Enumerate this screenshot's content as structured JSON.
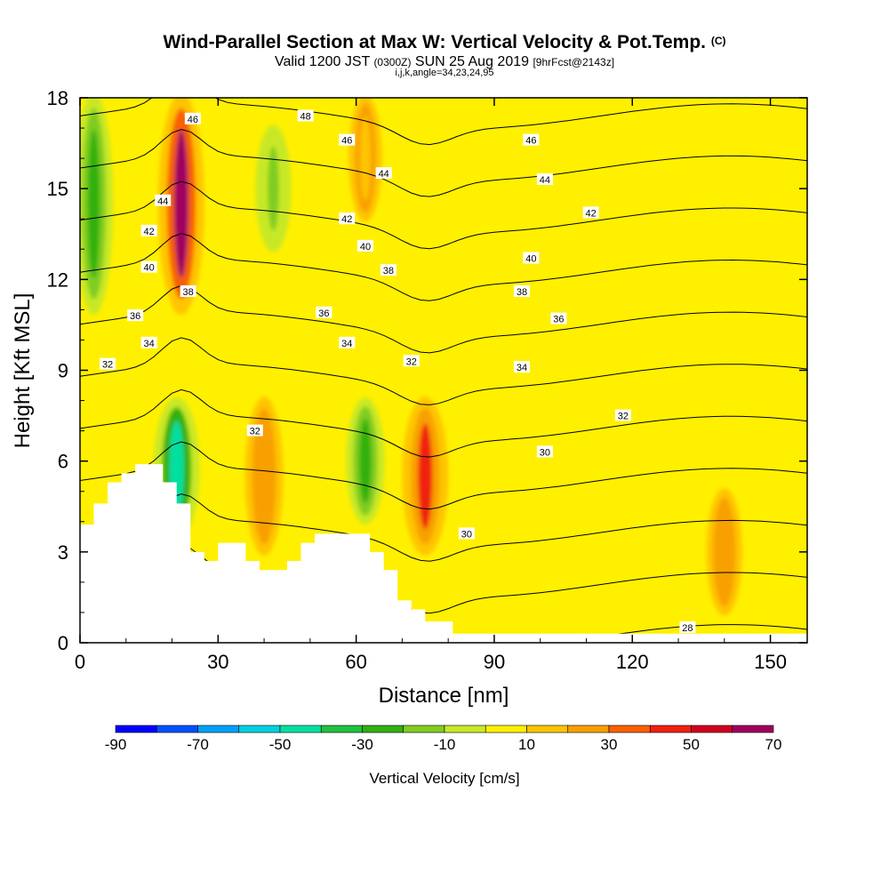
{
  "title": {
    "main": "Wind-Parallel Section at Max W: Vertical Velocity & Pot.Temp.",
    "copyright": "(C)",
    "valid_prefix": "Valid 1200 JST",
    "valid_utc": "(0300Z)",
    "valid_date": "SUN 25 Aug 2019",
    "forecast": "[9hrFcst@2143z]",
    "indices": "i,j,k,angle=34,23,24,95"
  },
  "chart_data": {
    "type": "heatmap",
    "xlabel": "Distance [nm]",
    "ylabel": "Height [Kft MSL]",
    "xlim": [
      0,
      158
    ],
    "ylim": [
      0,
      18
    ],
    "xticks": [
      0,
      30,
      60,
      90,
      120,
      150
    ],
    "xtick_labels": [
      "0",
      "30",
      "60",
      "90",
      "120",
      "150"
    ],
    "yticks": [
      0,
      3,
      6,
      9,
      12,
      15,
      18
    ],
    "ytick_labels": [
      "0",
      "3",
      "6",
      "9",
      "12",
      "15",
      "18"
    ],
    "colorbar": {
      "label": "Vertical Velocity [cm/s]",
      "tick_values": [
        -90,
        -70,
        -50,
        -30,
        -10,
        10,
        30,
        50,
        70
      ],
      "tick_labels": [
        "-90",
        "-70",
        "-50",
        "-30",
        "-10",
        "10",
        "30",
        "50",
        "70"
      ],
      "bins": [
        {
          "from": -90,
          "to": -80,
          "color": "#0000ff"
        },
        {
          "from": -80,
          "to": -70,
          "color": "#0050ff"
        },
        {
          "from": -70,
          "to": -60,
          "color": "#00a0f8"
        },
        {
          "from": -60,
          "to": -50,
          "color": "#00d0e0"
        },
        {
          "from": -50,
          "to": -40,
          "color": "#00e0a0"
        },
        {
          "from": -40,
          "to": -30,
          "color": "#20c040"
        },
        {
          "from": -30,
          "to": -20,
          "color": "#30b010"
        },
        {
          "from": -20,
          "to": -10,
          "color": "#80cc20"
        },
        {
          "from": -10,
          "to": 0,
          "color": "#c8e828"
        },
        {
          "from": 0,
          "to": 10,
          "color": "#fff000"
        },
        {
          "from": 10,
          "to": 20,
          "color": "#ffc400"
        },
        {
          "from": 20,
          "to": 30,
          "color": "#f8a000"
        },
        {
          "from": 30,
          "to": 40,
          "color": "#f86000"
        },
        {
          "from": 40,
          "to": 50,
          "color": "#f02010"
        },
        {
          "from": 50,
          "to": 60,
          "color": "#d00020"
        },
        {
          "from": 60,
          "to": 70,
          "color": "#a00060"
        }
      ]
    },
    "velocity_features": [
      {
        "x": 22,
        "y0": 11,
        "y1": 18,
        "value": 65,
        "desc": "strong updraft"
      },
      {
        "x": 75,
        "y0": 3,
        "y1": 8,
        "value": 45
      },
      {
        "x": 21,
        "y0": 3.5,
        "y1": 8,
        "value": -50
      },
      {
        "x": 40,
        "y0": 3,
        "y1": 8,
        "value": 25
      },
      {
        "x": 62,
        "y0": 4,
        "y1": 8,
        "value": -25
      },
      {
        "x": 3,
        "y0": 11,
        "y1": 18,
        "value": -25
      },
      {
        "x": 42,
        "y0": 13,
        "y1": 17,
        "value": -20
      },
      {
        "x": 62,
        "y0": 14,
        "y1": 18,
        "value": 15
      },
      {
        "x": 140,
        "y0": 1,
        "y1": 5,
        "value": 20
      }
    ],
    "terrain": [
      {
        "x": 0,
        "h": 3.9
      },
      {
        "x": 3,
        "h": 4.6
      },
      {
        "x": 6,
        "h": 5.3
      },
      {
        "x": 9,
        "h": 5.6
      },
      {
        "x": 12,
        "h": 5.9
      },
      {
        "x": 18,
        "h": 5.3
      },
      {
        "x": 21,
        "h": 4.6
      },
      {
        "x": 24,
        "h": 3.0
      },
      {
        "x": 27,
        "h": 2.7
      },
      {
        "x": 30,
        "h": 3.3
      },
      {
        "x": 36,
        "h": 2.7
      },
      {
        "x": 39,
        "h": 2.4
      },
      {
        "x": 45,
        "h": 2.7
      },
      {
        "x": 48,
        "h": 3.3
      },
      {
        "x": 51,
        "h": 3.6
      },
      {
        "x": 63,
        "h": 3.0
      },
      {
        "x": 66,
        "h": 2.4
      },
      {
        "x": 69,
        "h": 1.4
      },
      {
        "x": 72,
        "h": 1.1
      },
      {
        "x": 75,
        "h": 0.7
      },
      {
        "x": 81,
        "h": 0.3
      },
      {
        "x": 158,
        "h": 0.3
      }
    ],
    "contour_labels": [
      {
        "text": "46",
        "x": 24.5,
        "y": 17.3
      },
      {
        "text": "48",
        "x": 49,
        "y": 17.4
      },
      {
        "text": "46",
        "x": 58,
        "y": 16.6
      },
      {
        "text": "46",
        "x": 98,
        "y": 16.6
      },
      {
        "text": "44",
        "x": 66,
        "y": 15.5
      },
      {
        "text": "44",
        "x": 101,
        "y": 15.3
      },
      {
        "text": "44",
        "x": 18,
        "y": 14.6
      },
      {
        "text": "42",
        "x": 58,
        "y": 14.0
      },
      {
        "text": "42",
        "x": 111,
        "y": 14.2
      },
      {
        "text": "42",
        "x": 15,
        "y": 13.6
      },
      {
        "text": "40",
        "x": 62,
        "y": 13.1
      },
      {
        "text": "40",
        "x": 98,
        "y": 12.7
      },
      {
        "text": "40",
        "x": 15,
        "y": 12.4
      },
      {
        "text": "38",
        "x": 67,
        "y": 12.3
      },
      {
        "text": "38",
        "x": 23.5,
        "y": 11.6
      },
      {
        "text": "38",
        "x": 96,
        "y": 11.6
      },
      {
        "text": "36",
        "x": 12,
        "y": 10.8
      },
      {
        "text": "36",
        "x": 53,
        "y": 10.9
      },
      {
        "text": "36",
        "x": 104,
        "y": 10.7
      },
      {
        "text": "34",
        "x": 15,
        "y": 9.9
      },
      {
        "text": "34",
        "x": 58,
        "y": 9.9
      },
      {
        "text": "34",
        "x": 96,
        "y": 9.1
      },
      {
        "text": "32",
        "x": 6,
        "y": 9.2
      },
      {
        "text": "32",
        "x": 72,
        "y": 9.3
      },
      {
        "text": "32",
        "x": 38,
        "y": 7.0
      },
      {
        "text": "32",
        "x": 118,
        "y": 7.5
      },
      {
        "text": "30",
        "x": 101,
        "y": 6.3
      },
      {
        "text": "30",
        "x": 84,
        "y": 3.6
      },
      {
        "text": "28",
        "x": 132,
        "y": 0.5
      }
    ]
  }
}
